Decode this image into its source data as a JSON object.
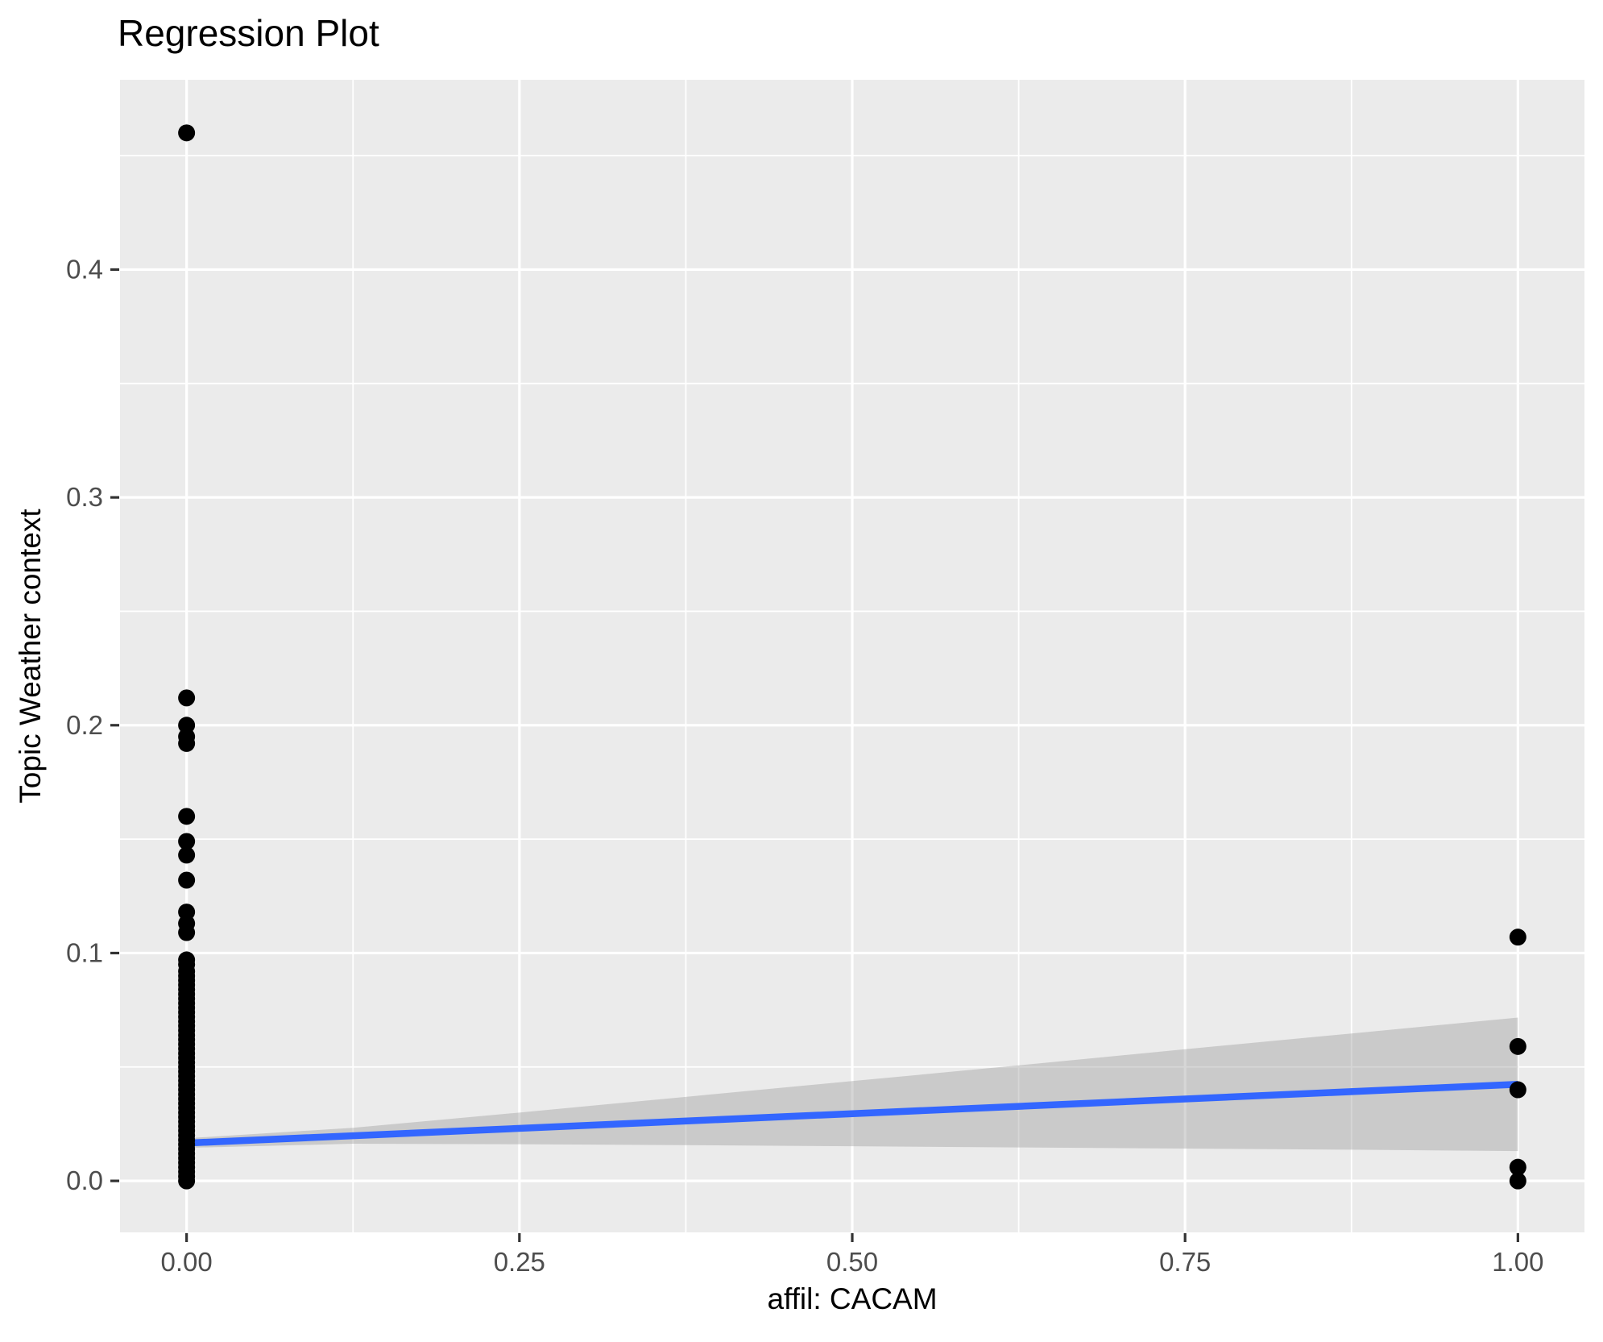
{
  "chart_data": {
    "type": "scatter",
    "title": "Regression Plot",
    "xlabel": "affil: CACAM",
    "ylabel": "Topic Weather context",
    "xlim": [
      -0.05,
      1.05
    ],
    "ylim": [
      -0.0226,
      0.4833
    ],
    "grid": "on",
    "legend": "none",
    "x_ticks": {
      "values": [
        0,
        0.25,
        0.5,
        0.75,
        1.0
      ],
      "labels": [
        "0.00",
        "0.25",
        "0.50",
        "0.75",
        "1.00"
      ]
    },
    "y_ticks": {
      "values": [
        0,
        0.1,
        0.2,
        0.3,
        0.4
      ],
      "labels": [
        "0.0",
        "0.1",
        "0.2",
        "0.3",
        "0.4"
      ]
    },
    "x_minor": [
      0.125,
      0.375,
      0.625,
      0.875
    ],
    "y_minor": [
      0.05,
      0.15,
      0.25,
      0.35,
      0.45
    ],
    "scatter": {
      "x0": {
        "x": 0,
        "y": [
          0.46,
          0.212,
          0.2,
          0.195,
          0.192,
          0.16,
          0.149,
          0.143,
          0.132,
          0.118,
          0.113,
          0.109,
          0.097,
          0.095,
          0.092,
          0.09,
          0.088,
          0.086,
          0.084,
          0.082,
          0.08,
          0.078,
          0.076,
          0.074,
          0.072,
          0.07,
          0.068,
          0.066,
          0.064,
          0.062,
          0.06,
          0.058,
          0.056,
          0.054,
          0.052,
          0.05,
          0.048,
          0.046,
          0.044,
          0.042,
          0.04,
          0.038,
          0.036,
          0.034,
          0.032,
          0.03,
          0.028,
          0.026,
          0.024,
          0.022,
          0.02,
          0.018,
          0.016,
          0.014,
          0.012,
          0.01,
          0.008,
          0.006,
          0.004,
          0.002,
          0.0
        ]
      },
      "x1": {
        "x": 1,
        "y": [
          0.107,
          0.059,
          0.04,
          0.006,
          0.0
        ]
      }
    },
    "regression_line": {
      "x": [
        0,
        1
      ],
      "y": [
        0.0166,
        0.0424
      ]
    },
    "ci_band": {
      "x": [
        0.0,
        0.125,
        0.25,
        0.375,
        0.5,
        0.625,
        0.75,
        0.875,
        1.0
      ],
      "upper": [
        0.0187,
        0.0233,
        0.03,
        0.0369,
        0.0438,
        0.0507,
        0.0578,
        0.0647,
        0.0717
      ],
      "lower": [
        0.0145,
        0.0163,
        0.0161,
        0.0157,
        0.0152,
        0.0147,
        0.0142,
        0.0137,
        0.0131
      ]
    },
    "colors": {
      "panel": "#EBEBEB",
      "grid": "#FFFFFF",
      "point": "#000000",
      "line": "#3366FF",
      "band": "rgba(153,153,153,0.4)",
      "tick_mark": "#333333",
      "tick_label": "#4D4D4D",
      "text": "#000000",
      "background": "#FFFFFF"
    }
  }
}
